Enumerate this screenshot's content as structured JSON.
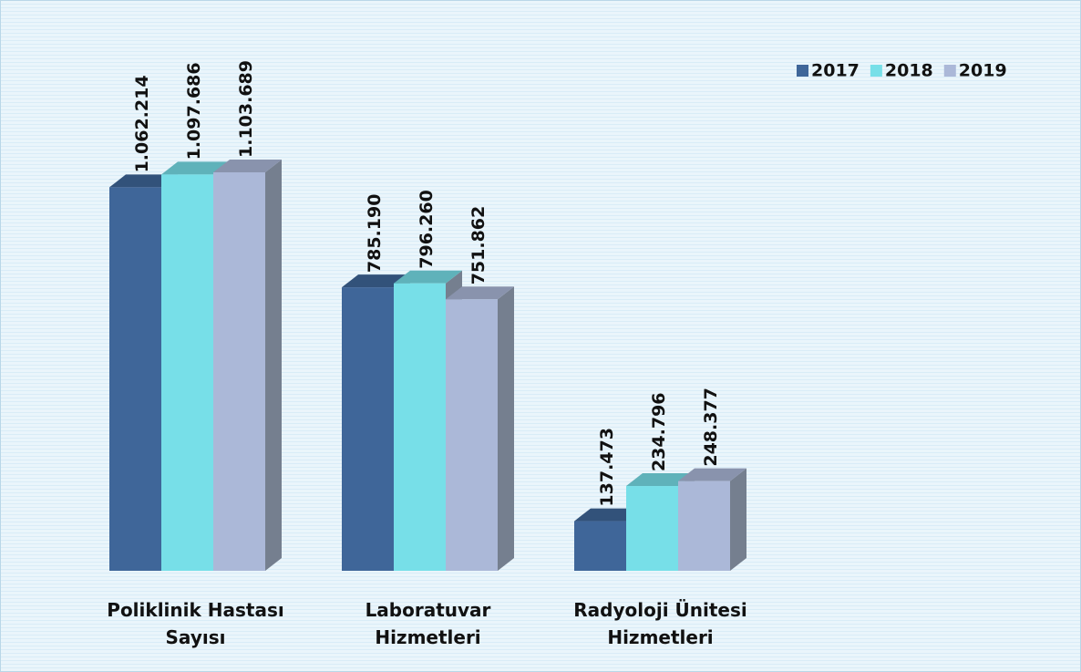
{
  "chart_data": {
    "type": "bar3d",
    "categories": [
      "Poliklinik Hastası Sayısı",
      "Laboratuvar Hizmetleri",
      "Radyoloji Ünitesi Hizmetleri"
    ],
    "series": [
      {
        "name": "2017",
        "color": "#3f6699",
        "values": [
          1062214,
          785190,
          137473
        ],
        "value_labels": [
          "1.062.214",
          "785.190",
          "137.473"
        ]
      },
      {
        "name": "2018",
        "color": "#77dfe8",
        "values": [
          1097686,
          796260,
          234796
        ],
        "value_labels": [
          "1.097.686",
          "796.260",
          "234.796"
        ]
      },
      {
        "name": "2019",
        "color": "#abb8d8",
        "values": [
          1103689,
          751862,
          248377
        ],
        "value_labels": [
          "1.103.689",
          "751.862",
          "248.377"
        ]
      }
    ],
    "legend": "top-right"
  }
}
